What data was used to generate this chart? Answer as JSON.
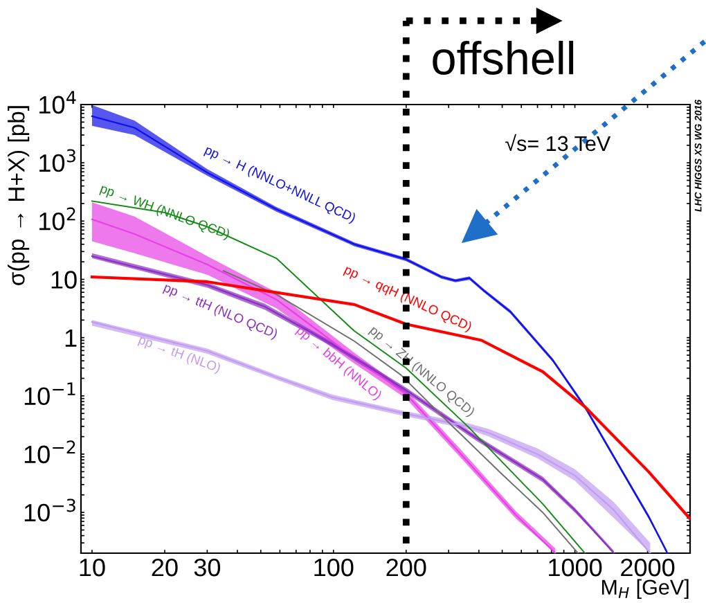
{
  "chart_data": {
    "type": "line",
    "xlabel": "M$_{H}$ [GeV]",
    "ylabel": "σ(pp → H+X) [pb]",
    "log": "xy",
    "grid": false,
    "legend": false,
    "marker": "none",
    "line_style": "solid",
    "xlim": [
      9,
      3000
    ],
    "ylim": [
      0.0002,
      10000
    ],
    "xticks": [
      10,
      20,
      30,
      {
        "value": 40,
        "label": null
      },
      {
        "value": 50,
        "label": null
      },
      {
        "value": 60,
        "label": null
      },
      {
        "value": 70,
        "label": null
      },
      {
        "value": 80,
        "label": null
      },
      {
        "value": 90,
        "label": null
      },
      100,
      200,
      {
        "value": 300,
        "label": null
      },
      {
        "value": 400,
        "label": null
      },
      {
        "value": 500,
        "label": null
      },
      {
        "value": 600,
        "label": null
      },
      {
        "value": 700,
        "label": null
      },
      {
        "value": 800,
        "label": null
      },
      {
        "value": 900,
        "label": null
      },
      1000,
      2000
    ],
    "yticks": [
      {
        "value": 0.0003,
        "label": null
      },
      {
        "value": 0.0004,
        "label": null
      },
      {
        "value": 0.0005,
        "label": null
      },
      {
        "value": 0.0006,
        "label": null
      },
      {
        "value": 0.0007,
        "label": null
      },
      {
        "value": 0.0008,
        "label": null
      },
      {
        "value": 0.0009,
        "label": null
      },
      {
        "value": 0.001,
        "label": "10$^{−3}$"
      },
      {
        "value": 0.002,
        "label": null
      },
      {
        "value": 0.003,
        "label": null
      },
      {
        "value": 0.004,
        "label": null
      },
      {
        "value": 0.005,
        "label": null
      },
      {
        "value": 0.006,
        "label": null
      },
      {
        "value": 0.007,
        "label": null
      },
      {
        "value": 0.008,
        "label": null
      },
      {
        "value": 0.009,
        "label": null
      },
      {
        "value": 0.01,
        "label": "10$^{−2}$"
      },
      {
        "value": 0.02,
        "label": null
      },
      {
        "value": 0.03,
        "label": null
      },
      {
        "value": 0.04,
        "label": null
      },
      {
        "value": 0.05,
        "label": null
      },
      {
        "value": 0.06,
        "label": null
      },
      {
        "value": 0.07,
        "label": null
      },
      {
        "value": 0.08,
        "label": null
      },
      {
        "value": 0.09,
        "label": null
      },
      {
        "value": 0.1,
        "label": "10$^{−1}$"
      },
      {
        "value": 0.2,
        "label": null
      },
      {
        "value": 0.3,
        "label": null
      },
      {
        "value": 0.4,
        "label": null
      },
      {
        "value": 0.5,
        "label": null
      },
      {
        "value": 0.6,
        "label": null
      },
      {
        "value": 0.7,
        "label": null
      },
      {
        "value": 0.8,
        "label": null
      },
      {
        "value": 0.9,
        "label": null
      },
      1,
      {
        "value": 2,
        "label": null
      },
      {
        "value": 3,
        "label": null
      },
      {
        "value": 4,
        "label": null
      },
      {
        "value": 5,
        "label": null
      },
      {
        "value": 6,
        "label": null
      },
      {
        "value": 7,
        "label": null
      },
      {
        "value": 8,
        "label": null
      },
      {
        "value": 9,
        "label": null
      },
      10,
      {
        "value": 20,
        "label": null
      },
      {
        "value": 30,
        "label": null
      },
      {
        "value": 40,
        "label": null
      },
      {
        "value": 50,
        "label": null
      },
      {
        "value": 60,
        "label": null
      },
      {
        "value": 70,
        "label": null
      },
      {
        "value": 80,
        "label": null
      },
      {
        "value": 90,
        "label": null
      },
      {
        "value": 100,
        "label": "10$^{2}$"
      },
      {
        "value": 200,
        "label": null
      },
      {
        "value": 300,
        "label": null
      },
      {
        "value": 400,
        "label": null
      },
      {
        "value": 500,
        "label": null
      },
      {
        "value": 600,
        "label": null
      },
      {
        "value": 700,
        "label": null
      },
      {
        "value": 800,
        "label": null
      },
      {
        "value": 900,
        "label": null
      },
      {
        "value": 1000,
        "label": "10$^{3}$"
      },
      {
        "value": 2000,
        "label": null
      },
      {
        "value": 3000,
        "label": null
      },
      {
        "value": 4000,
        "label": null
      },
      {
        "value": 5000,
        "label": null
      },
      {
        "value": 6000,
        "label": null
      },
      {
        "value": 7000,
        "label": null
      },
      {
        "value": 8000,
        "label": null
      },
      {
        "value": 9000,
        "label": null
      },
      {
        "value": 10000,
        "label": "10$^{4}$"
      }
    ],
    "series": [
      {
        "name": "pp → H (NNLO+NNLL QCD)",
        "color": "#1010e8",
        "x": [
          10,
          15,
          30,
          58,
          122,
          200,
          280,
          320,
          366,
          420,
          540,
          810,
          1100,
          1570,
          2020,
          2415
        ],
        "values": [
          6300,
          4000,
          680,
          160,
          40,
          22,
          11,
          9.5,
          10.5,
          6.4,
          2.8,
          0.41,
          0.065,
          0.0051,
          0.00085,
          0.0002
        ],
        "lower": [
          4300,
          3000,
          600,
          145,
          37,
          20.5,
          10.3,
          8.9,
          9.8,
          6,
          2.6,
          0.38,
          0.06,
          0.0047,
          0.00078,
          0.0002
        ],
        "upper": [
          9800,
          5300,
          780,
          175,
          43,
          23.5,
          11.7,
          10.1,
          11.2,
          6.8,
          3,
          0.44,
          0.07,
          0.0055,
          0.00092,
          0.00022
        ]
      },
      {
        "name": "pp → WH (NNLO QCD)",
        "color": "#168a16",
        "x": [
          10,
          20,
          30,
          58,
          122,
          200,
          360,
          736,
          1100
        ],
        "values": [
          220,
          140,
          80,
          23,
          1.3,
          0.3,
          0.03,
          0.0014,
          0.0002
        ]
      },
      {
        "name": "pp → bbH (NNLO)",
        "color": "#e640e6",
        "x": [
          10,
          15,
          30,
          58,
          122,
          200,
          343,
          570,
          830
        ],
        "values": [
          107,
          60,
          18,
          4.5,
          0.45,
          0.107,
          0.0093,
          0.0009,
          0.0002
        ],
        "lower": [
          45,
          28,
          12,
          3.2,
          0.36,
          0.09,
          0.008,
          0.00078,
          0.0002
        ],
        "upper": [
          210,
          120,
          25,
          6,
          0.55,
          0.125,
          0.011,
          0.00105,
          0.00024
        ]
      },
      {
        "name": "pp → ZH (NNLO QCD)",
        "color": "#707070",
        "x": [
          35,
          58,
          122,
          190,
          302,
          500,
          736,
          1030
        ],
        "values": [
          14,
          5.5,
          0.87,
          0.23,
          0.034,
          0.0045,
          0.001,
          0.0002
        ]
      },
      {
        "name": "pp → ttH (NLO QCD)",
        "color": "#8a2fc0",
        "x": [
          10,
          30,
          52,
          100,
          200,
          390,
          736,
          1000,
          1450
        ],
        "values": [
          25,
          8,
          3.4,
          0.75,
          0.125,
          0.019,
          0.0037,
          0.0011,
          0.0002
        ],
        "lower": [
          23,
          7.2,
          3,
          0.68,
          0.112,
          0.017,
          0.0033,
          0.001,
          0.0002
        ],
        "upper": [
          28,
          8.8,
          3.8,
          0.82,
          0.138,
          0.021,
          0.0041,
          0.0012,
          0.00022
        ]
      },
      {
        "name": "pp → tH (NLO)",
        "color": "#c29cf0",
        "x": [
          10,
          30,
          58,
          99,
          192,
          360,
          441,
          700,
          1000,
          1450,
          2050
        ],
        "values": [
          1.85,
          0.59,
          0.21,
          0.095,
          0.051,
          0.03,
          0.023,
          0.01,
          0.0043,
          0.0011,
          0.0002
        ],
        "lower": [
          1.6,
          0.53,
          0.19,
          0.085,
          0.046,
          0.027,
          0.02,
          0.0085,
          0.0035,
          0.0008,
          0.0002
        ],
        "upper": [
          2.0,
          0.65,
          0.23,
          0.105,
          0.056,
          0.034,
          0.027,
          0.0125,
          0.0055,
          0.0015,
          0.0003
        ]
      },
      {
        "name": "pp → qqH (NNLO QCD)",
        "color": "#ff0000",
        "x": [
          10,
          30,
          122,
          200,
          410,
          736,
          1100,
          2020,
          2980
        ],
        "values": [
          11,
          9.1,
          3.7,
          1.7,
          0.9,
          0.26,
          0.065,
          0.005,
          0.0008
        ]
      }
    ],
    "ref_lines": [
      {
        "axis": "x",
        "value": 200,
        "label": "offshell",
        "color": "#000000",
        "line_style": "dotted"
      }
    ],
    "annotations": [
      "√s= 13 TeV",
      "LHC HIGGS XS WG 2016"
    ]
  }
}
